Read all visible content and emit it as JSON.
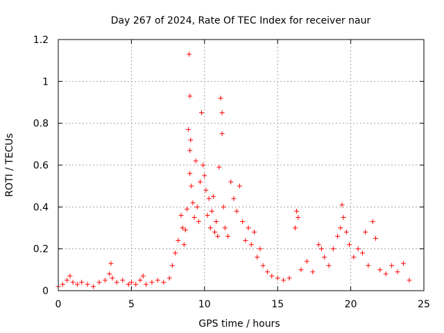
{
  "chart_data": {
    "type": "scatter",
    "title": "Day 267 of 2024, Rate Of TEC Index for receiver naur",
    "xlabel": "GPS time / hours",
    "ylabel": "ROTI / TECUs",
    "xlim": [
      0,
      25
    ],
    "ylim": [
      0,
      1.2
    ],
    "xticks": [
      "0",
      "5",
      "10",
      "15",
      "20",
      "25"
    ],
    "yticks": [
      "0",
      "0.2",
      "0.4",
      "0.6",
      "0.8",
      "1",
      "1.2"
    ],
    "grid": true,
    "marker": "plus",
    "color": "#ff0000",
    "series": [
      {
        "name": "",
        "x": [
          0.0,
          0.3,
          0.6,
          0.8,
          1.0,
          1.3,
          1.6,
          2.0,
          2.4,
          2.8,
          3.2,
          3.5,
          3.6,
          3.7,
          4.0,
          4.4,
          4.8,
          5.0,
          5.3,
          5.6,
          5.8,
          6.0,
          6.4,
          6.8,
          7.2,
          7.6,
          7.8,
          8.0,
          8.2,
          8.4,
          8.5,
          8.6,
          8.7,
          8.8,
          8.9,
          8.95,
          9.0,
          9.0,
          9.0,
          9.05,
          9.1,
          9.2,
          9.3,
          9.4,
          9.5,
          9.6,
          9.7,
          9.8,
          9.9,
          10.0,
          10.1,
          10.2,
          10.3,
          10.4,
          10.5,
          10.6,
          10.7,
          10.8,
          10.9,
          11.0,
          11.1,
          11.2,
          11.2,
          11.3,
          11.4,
          11.6,
          11.8,
          12.0,
          12.2,
          12.4,
          12.6,
          12.8,
          13.0,
          13.2,
          13.4,
          13.6,
          13.8,
          14.0,
          14.3,
          14.6,
          15.0,
          15.4,
          15.8,
          16.2,
          16.3,
          16.4,
          16.6,
          17.0,
          17.4,
          17.8,
          18.0,
          18.2,
          18.5,
          18.8,
          19.1,
          19.3,
          19.4,
          19.5,
          19.7,
          19.9,
          20.2,
          20.5,
          20.8,
          21.0,
          21.2,
          21.5,
          21.7,
          22.0,
          22.4,
          22.8,
          23.2,
          23.6,
          24.0
        ],
        "y": [
          0.02,
          0.03,
          0.05,
          0.07,
          0.04,
          0.03,
          0.04,
          0.03,
          0.02,
          0.04,
          0.05,
          0.08,
          0.13,
          0.06,
          0.04,
          0.05,
          0.03,
          0.04,
          0.03,
          0.05,
          0.07,
          0.03,
          0.04,
          0.05,
          0.04,
          0.06,
          0.12,
          0.18,
          0.24,
          0.36,
          0.3,
          0.22,
          0.29,
          0.39,
          0.77,
          1.13,
          0.93,
          0.67,
          0.56,
          0.72,
          0.5,
          0.42,
          0.35,
          0.62,
          0.4,
          0.33,
          0.52,
          0.85,
          0.6,
          0.55,
          0.48,
          0.36,
          0.44,
          0.3,
          0.38,
          0.45,
          0.28,
          0.33,
          0.26,
          0.59,
          0.92,
          0.85,
          0.75,
          0.4,
          0.3,
          0.26,
          0.52,
          0.44,
          0.38,
          0.5,
          0.33,
          0.24,
          0.3,
          0.22,
          0.28,
          0.16,
          0.2,
          0.12,
          0.09,
          0.07,
          0.06,
          0.05,
          0.06,
          0.3,
          0.38,
          0.35,
          0.1,
          0.14,
          0.09,
          0.22,
          0.2,
          0.16,
          0.12,
          0.2,
          0.26,
          0.3,
          0.41,
          0.35,
          0.28,
          0.22,
          0.16,
          0.2,
          0.18,
          0.28,
          0.12,
          0.33,
          0.25,
          0.1,
          0.08,
          0.12,
          0.09,
          0.13,
          0.05
        ]
      }
    ]
  }
}
